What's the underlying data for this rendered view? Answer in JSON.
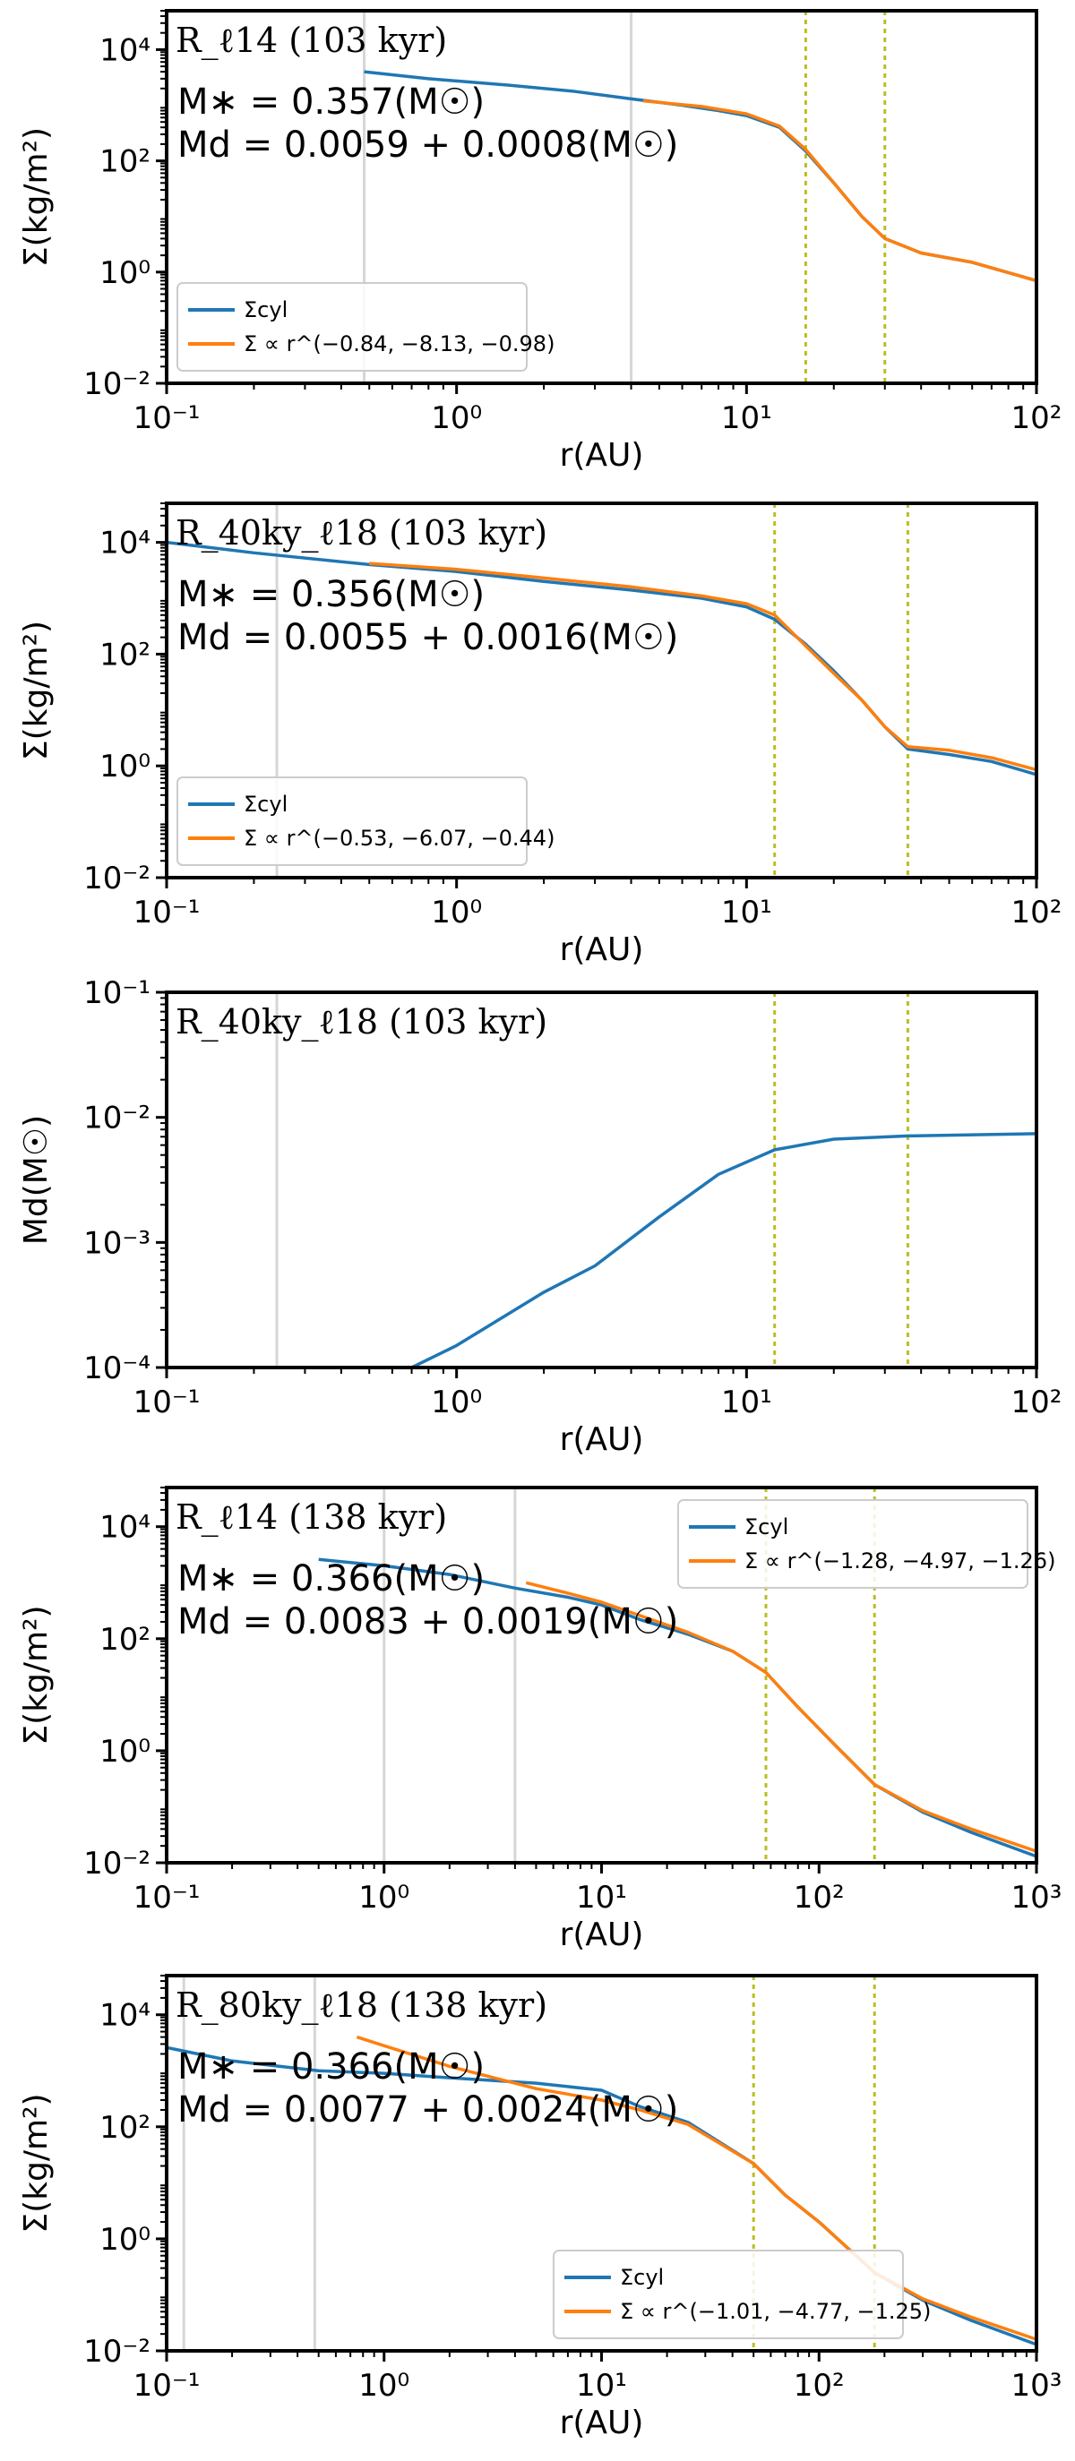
{
  "chart_data": [
    {
      "type": "line",
      "title": "R_ℓ14 (103 kyr)",
      "xlabel": "r(AU)",
      "ylabel": "Σ(kg/m²)",
      "x_scale": "log",
      "y_scale": "log",
      "xlim": [
        0.1,
        100
      ],
      "ylim": [
        0.01,
        50000
      ],
      "x_ticks": [
        "10⁻¹",
        "10⁰",
        "10¹",
        "10²"
      ],
      "y_ticks": [
        "10⁻²",
        "10⁰",
        "10²",
        "10⁴"
      ],
      "annotations": [
        "M∗ = 0.357(M☉)",
        "Md = 0.0059 + 0.0008(M☉)"
      ],
      "legend_position": "lower-left",
      "vlines_gray": [
        0.48,
        4.0
      ],
      "vlines_dashed": [
        16,
        30
      ],
      "series": [
        {
          "name": "Σcyl",
          "color": "#1f77b4",
          "points": [
            [
              0.48,
              4000
            ],
            [
              0.8,
              3000
            ],
            [
              1.5,
              2300
            ],
            [
              2.5,
              1800
            ],
            [
              4.0,
              1300
            ],
            [
              6,
              1000
            ],
            [
              8,
              800
            ],
            [
              10,
              650
            ],
            [
              13,
              400
            ],
            [
              16,
              150
            ],
            [
              20,
              40
            ],
            [
              25,
              10
            ],
            [
              30,
              4
            ],
            [
              40,
              2.2
            ],
            [
              60,
              1.5
            ],
            [
              100,
              0.7
            ]
          ]
        },
        {
          "name": "Σ ∝ r^(−0.84, −8.13, −0.98)",
          "color": "#ff7f0e",
          "points": [
            [
              4.4,
              1200
            ],
            [
              7,
              950
            ],
            [
              10,
              700
            ],
            [
              13,
              420
            ],
            [
              16,
              160
            ],
            [
              20,
              40
            ],
            [
              25,
              10
            ],
            [
              30,
              4
            ],
            [
              40,
              2.2
            ],
            [
              60,
              1.5
            ],
            [
              100,
              0.7
            ]
          ]
        }
      ]
    },
    {
      "type": "line",
      "title": "R_40ky_ℓ18 (103 kyr)",
      "xlabel": "r(AU)",
      "ylabel": "Σ(kg/m²)",
      "x_scale": "log",
      "y_scale": "log",
      "xlim": [
        0.1,
        100
      ],
      "ylim": [
        0.01,
        50000
      ],
      "x_ticks": [
        "10⁻¹",
        "10⁰",
        "10¹",
        "10²"
      ],
      "y_ticks": [
        "10⁻²",
        "10⁰",
        "10²",
        "10⁴"
      ],
      "annotations": [
        "M∗ = 0.356(M☉)",
        "Md = 0.0055 + 0.0016(M☉)"
      ],
      "legend_position": "lower-left",
      "vlines_gray": [
        0.24
      ],
      "vlines_dashed": [
        12.5,
        36
      ],
      "series": [
        {
          "name": "Σcyl",
          "color": "#1f77b4",
          "points": [
            [
              0.1,
              10000
            ],
            [
              0.2,
              6500
            ],
            [
              0.5,
              4000
            ],
            [
              1,
              3000
            ],
            [
              2,
              2000
            ],
            [
              4,
              1400
            ],
            [
              7,
              1000
            ],
            [
              10,
              700
            ],
            [
              12.5,
              420
            ],
            [
              16,
              150
            ],
            [
              20,
              50
            ],
            [
              25,
              15
            ],
            [
              30,
              5
            ],
            [
              36,
              2.0
            ],
            [
              50,
              1.6
            ],
            [
              70,
              1.2
            ],
            [
              100,
              0.7
            ]
          ]
        },
        {
          "name": "Σ ∝ r^(−0.53, −6.07, −0.44)",
          "color": "#ff7f0e",
          "points": [
            [
              0.5,
              4200
            ],
            [
              1,
              3300
            ],
            [
              2,
              2300
            ],
            [
              4,
              1600
            ],
            [
              7,
              1100
            ],
            [
              10,
              800
            ],
            [
              12.5,
              500
            ],
            [
              16,
              140
            ],
            [
              20,
              45
            ],
            [
              25,
              15
            ],
            [
              30,
              5
            ],
            [
              36,
              2.2
            ],
            [
              50,
              1.9
            ],
            [
              70,
              1.4
            ],
            [
              100,
              0.85
            ]
          ]
        }
      ]
    },
    {
      "type": "line",
      "title": "R_40ky_ℓ18 (103 kyr)",
      "xlabel": "r(AU)",
      "ylabel": "Md(M☉)",
      "x_scale": "log",
      "y_scale": "log",
      "xlim": [
        0.1,
        100
      ],
      "ylim": [
        0.0001,
        0.1
      ],
      "x_ticks": [
        "10⁻¹",
        "10⁰",
        "10¹",
        "10²"
      ],
      "y_ticks": [
        "10⁻⁴",
        "10⁻³",
        "10⁻²",
        "10⁻¹"
      ],
      "annotations": [],
      "vlines_gray": [
        0.24
      ],
      "vlines_dashed": [
        12.5,
        36
      ],
      "series": [
        {
          "color": "#1f77b4",
          "points": [
            [
              0.7,
              0.0001
            ],
            [
              1,
              0.00015
            ],
            [
              2,
              0.0004
            ],
            [
              3,
              0.00065
            ],
            [
              5,
              0.0016
            ],
            [
              8,
              0.0035
            ],
            [
              12.5,
              0.0055
            ],
            [
              20,
              0.0067
            ],
            [
              36,
              0.0071
            ],
            [
              100,
              0.0074
            ]
          ]
        }
      ]
    },
    {
      "type": "line",
      "title": "R_ℓ14 (138 kyr)",
      "xlabel": "r(AU)",
      "ylabel": "Σ(kg/m²)",
      "x_scale": "log",
      "y_scale": "log",
      "xlim": [
        0.1,
        1000
      ],
      "ylim": [
        0.01,
        50000
      ],
      "x_ticks": [
        "10⁻¹",
        "10⁰",
        "10¹",
        "10²",
        "10³"
      ],
      "y_ticks": [
        "10⁻²",
        "10⁰",
        "10²",
        "10⁴"
      ],
      "annotations": [
        "M∗ = 0.366(M☉)",
        "Md = 0.0083 + 0.0019(M☉)"
      ],
      "legend_position": "top-right",
      "vlines_gray": [
        1.0,
        4.0
      ],
      "vlines_dashed": [
        57,
        180
      ],
      "series": [
        {
          "name": "Σcyl",
          "color": "#1f77b4",
          "points": [
            [
              0.5,
              2600
            ],
            [
              1,
              2000
            ],
            [
              2,
              1400
            ],
            [
              4,
              800
            ],
            [
              7,
              550
            ],
            [
              10,
              400
            ],
            [
              15,
              220
            ],
            [
              25,
              120
            ],
            [
              40,
              60
            ],
            [
              57,
              25
            ],
            [
              80,
              6
            ],
            [
              120,
              1.2
            ],
            [
              180,
              0.25
            ],
            [
              300,
              0.08
            ],
            [
              500,
              0.035
            ],
            [
              1000,
              0.013
            ]
          ]
        },
        {
          "name": "Σ ∝ r^(−1.28, −4.97, −1.26)",
          "color": "#ff7f0e",
          "points": [
            [
              4.5,
              1000
            ],
            [
              7,
              650
            ],
            [
              10,
              450
            ],
            [
              15,
              260
            ],
            [
              25,
              130
            ],
            [
              40,
              60
            ],
            [
              57,
              25
            ],
            [
              80,
              6
            ],
            [
              120,
              1.2
            ],
            [
              180,
              0.25
            ],
            [
              300,
              0.085
            ],
            [
              500,
              0.04
            ],
            [
              1000,
              0.016
            ]
          ]
        }
      ]
    },
    {
      "type": "line",
      "title": "R_80ky_ℓ18 (138 kyr)",
      "xlabel": "r(AU)",
      "ylabel": "Σ(kg/m²)",
      "x_scale": "log",
      "y_scale": "log",
      "xlim": [
        0.1,
        1000
      ],
      "ylim": [
        0.01,
        50000
      ],
      "x_ticks": [
        "10⁻¹",
        "10⁰",
        "10¹",
        "10²",
        "10³"
      ],
      "y_ticks": [
        "10⁻²",
        "10⁰",
        "10²",
        "10⁴"
      ],
      "annotations": [
        "M∗ = 0.366(M☉)",
        "Md = 0.0077 + 0.0024(M☉)"
      ],
      "legend_position": "lower-center",
      "vlines_gray": [
        0.12,
        0.48
      ],
      "vlines_dashed": [
        50,
        180
      ],
      "series": [
        {
          "name": "Σcyl",
          "color": "#1f77b4",
          "points": [
            [
              0.1,
              2600
            ],
            [
              0.2,
              1500
            ],
            [
              0.5,
              1000
            ],
            [
              1,
              900
            ],
            [
              2,
              750
            ],
            [
              5,
              600
            ],
            [
              10,
              450
            ],
            [
              15,
              230
            ],
            [
              25,
              120
            ],
            [
              50,
              22
            ],
            [
              70,
              6
            ],
            [
              100,
              2
            ],
            [
              180,
              0.25
            ],
            [
              300,
              0.08
            ],
            [
              500,
              0.035
            ],
            [
              1000,
              0.013
            ]
          ]
        },
        {
          "name": "Σ ∝ r^(−1.01, −4.77, −1.25)",
          "color": "#ff7f0e",
          "points": [
            [
              0.75,
              4000
            ],
            [
              1,
              2800
            ],
            [
              2,
              1200
            ],
            [
              5,
              480
            ],
            [
              10,
              300
            ],
            [
              15,
              200
            ],
            [
              25,
              110
            ],
            [
              50,
              22
            ],
            [
              70,
              6
            ],
            [
              100,
              2
            ],
            [
              180,
              0.25
            ],
            [
              300,
              0.085
            ],
            [
              500,
              0.04
            ],
            [
              1000,
              0.016
            ]
          ]
        }
      ]
    }
  ]
}
